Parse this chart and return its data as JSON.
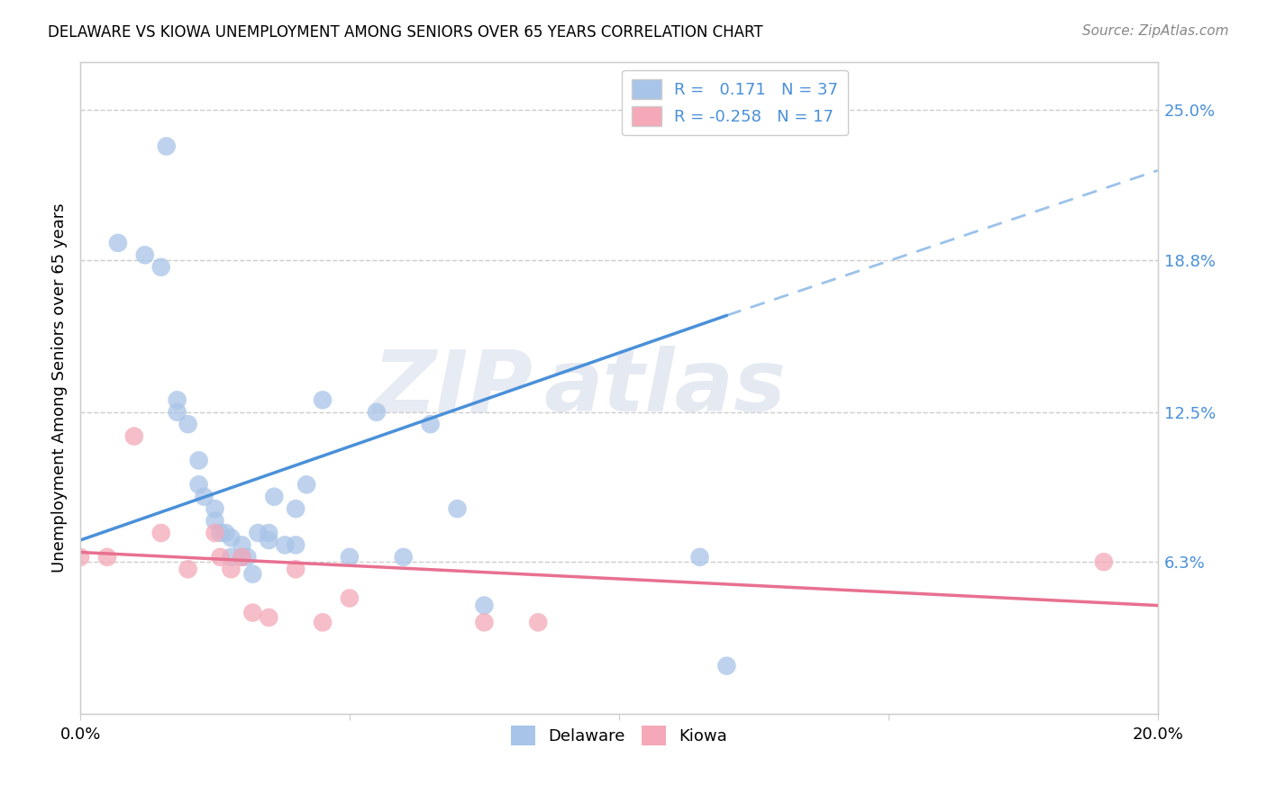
{
  "title": "DELAWARE VS KIOWA UNEMPLOYMENT AMONG SENIORS OVER 65 YEARS CORRELATION CHART",
  "source": "Source: ZipAtlas.com",
  "ylabel": "Unemployment Among Seniors over 65 years",
  "yticks": [
    "25.0%",
    "18.8%",
    "12.5%",
    "6.3%"
  ],
  "ytick_vals": [
    0.25,
    0.188,
    0.125,
    0.063
  ],
  "xlim": [
    0.0,
    0.2
  ],
  "ylim": [
    0.0,
    0.27
  ],
  "delaware_R": 0.171,
  "delaware_N": 37,
  "kiowa_R": -0.258,
  "kiowa_N": 17,
  "delaware_color": "#a8c4e8",
  "kiowa_color": "#f4a8b8",
  "delaware_line_color": "#4a90d9",
  "kiowa_line_color": "#e87090",
  "watermark_text": "ZIP",
  "watermark_text2": "atlas",
  "background_color": "#ffffff",
  "delaware_x": [
    0.007,
    0.012,
    0.015,
    0.016,
    0.018,
    0.018,
    0.02,
    0.022,
    0.022,
    0.023,
    0.025,
    0.025,
    0.026,
    0.027,
    0.028,
    0.028,
    0.03,
    0.03,
    0.031,
    0.032,
    0.033,
    0.035,
    0.035,
    0.036,
    0.038,
    0.04,
    0.04,
    0.042,
    0.045,
    0.05,
    0.055,
    0.06,
    0.065,
    0.07,
    0.075,
    0.115,
    0.12
  ],
  "delaware_y": [
    0.195,
    0.19,
    0.185,
    0.235,
    0.13,
    0.125,
    0.12,
    0.105,
    0.095,
    0.09,
    0.085,
    0.08,
    0.075,
    0.075,
    0.073,
    0.065,
    0.07,
    0.065,
    0.065,
    0.058,
    0.075,
    0.075,
    0.072,
    0.09,
    0.07,
    0.07,
    0.085,
    0.095,
    0.13,
    0.065,
    0.125,
    0.065,
    0.12,
    0.085,
    0.045,
    0.065,
    0.02
  ],
  "kiowa_x": [
    0.0,
    0.005,
    0.01,
    0.015,
    0.02,
    0.025,
    0.026,
    0.028,
    0.03,
    0.032,
    0.035,
    0.04,
    0.045,
    0.05,
    0.075,
    0.085,
    0.19
  ],
  "kiowa_y": [
    0.065,
    0.065,
    0.115,
    0.075,
    0.06,
    0.075,
    0.065,
    0.06,
    0.065,
    0.042,
    0.04,
    0.06,
    0.038,
    0.048,
    0.038,
    0.038,
    0.063
  ],
  "de_line_x0": 0.0,
  "de_line_y0": 0.072,
  "de_line_x1": 0.12,
  "de_line_y1": 0.165,
  "de_line_dash_x0": 0.12,
  "de_line_dash_y0": 0.165,
  "de_line_dash_x1": 0.2,
  "de_line_dash_y1": 0.225,
  "ki_line_x0": 0.0,
  "ki_line_y0": 0.067,
  "ki_line_x1": 0.2,
  "ki_line_y1": 0.045
}
